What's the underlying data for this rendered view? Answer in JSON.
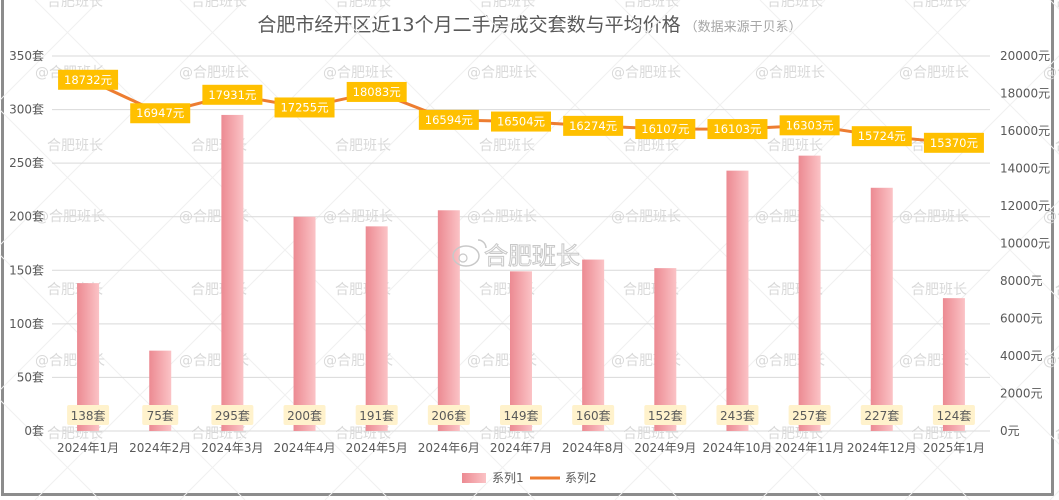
{
  "title": "合肥市经开区近13个月二手房成交套数与平均价格",
  "subtitle": "（数据来源于贝系）",
  "watermark": "合肥班长",
  "watermark_at": "@合肥班长",
  "colors": {
    "bar": "#f4a3a8",
    "bar_dark": "#ec8a92",
    "line": "#ed7d31",
    "label_box": "#ffc000",
    "bar_label_bg": "#fff2cc",
    "grid": "#d9d9d9"
  },
  "legend": {
    "series1": "系列1",
    "series2": "系列2"
  },
  "y_left_ticks": [
    "0套",
    "50套",
    "100套",
    "150套",
    "200套",
    "250套",
    "300套",
    "350套"
  ],
  "y_right_ticks": [
    "0元",
    "2000元",
    "4000元",
    "6000元",
    "8000元",
    "10000元",
    "12000元",
    "14000元",
    "16000元",
    "18000元",
    "20000元"
  ],
  "chart_data": {
    "type": "bar+line",
    "title": "合肥市经开区近13个月二手房成交套数与平均价格（数据来源于贝系）",
    "categories": [
      "2024年1月",
      "2024年2月",
      "2024年3月",
      "2024年4月",
      "2024年5月",
      "2024年6月",
      "2024年7月",
      "2024年8月",
      "2024年9月",
      "2024年10月",
      "2024年11月",
      "2024年12月",
      "2025年1月"
    ],
    "series": [
      {
        "name": "系列1",
        "type": "bar",
        "axis": "left",
        "unit": "套",
        "values": [
          138,
          75,
          295,
          200,
          191,
          206,
          149,
          160,
          152,
          243,
          257,
          227,
          124
        ],
        "labels": [
          "138套",
          "75套",
          "295套",
          "200套",
          "191套",
          "206套",
          "149套",
          "160套",
          "152套",
          "243套",
          "257套",
          "227套",
          "124套"
        ]
      },
      {
        "name": "系列2",
        "type": "line",
        "axis": "right",
        "unit": "元",
        "values": [
          18732,
          16947,
          17931,
          17255,
          18083,
          16594,
          16504,
          16274,
          16107,
          16103,
          16303,
          15724,
          15370
        ],
        "labels": [
          "18732元",
          "16947元",
          "17931元",
          "17255元",
          "18083元",
          "16594元",
          "16504元",
          "16274元",
          "16107元",
          "16103元",
          "16303元",
          "15724元",
          "15370元"
        ]
      }
    ],
    "ylim_left": [
      0,
      350
    ],
    "ylim_right": [
      0,
      20000
    ],
    "xlabel": "",
    "ylabel_left": "",
    "ylabel_right": "",
    "grid": true,
    "legend_position": "bottom"
  }
}
